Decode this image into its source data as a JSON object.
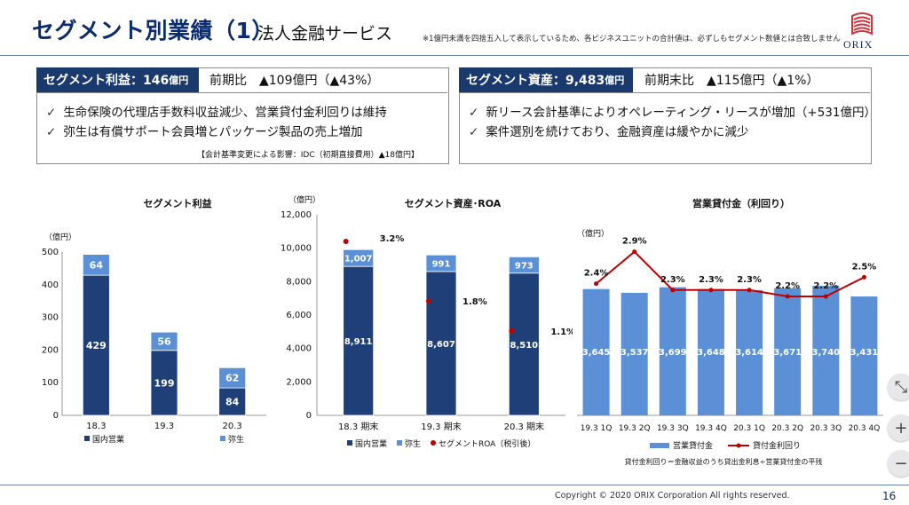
{
  "header": {
    "title": "セグメント別業績（1）",
    "subtitle": "法人金融サービス",
    "note": "※1億円未満を四捨五入して表示しているため、各ビジネスユニットの合計値は、必ずしもセグメント数値とは合致しません",
    "logo_text": "ORIX"
  },
  "profit_panel": {
    "badge_label": "セグメント利益：146",
    "badge_unit": "億円",
    "comparison": "前期比　▲109億円（▲43%）",
    "bullets": [
      "生命保険の代理店手数料収益減少、営業貸付金利回りは維持",
      "弥生は有償サポート会員増とパッケージ製品の売上増加"
    ],
    "effect_note": "【会計基準変更による影響：IDC（初期直接費用）▲18億円】"
  },
  "assets_panel": {
    "badge_label": "セグメント資産：9,483",
    "badge_unit": "億円",
    "comparison": "前期末比　▲115億円（▲1%）",
    "bullets": [
      "新リース会計基準によりオペレーティング・リースが増加（+531億円）",
      "案件選別を続けており、金融資産は緩やかに減少"
    ]
  },
  "chart_data": [
    {
      "type": "bar",
      "title": "セグメント利益",
      "unit_label": "（億円）",
      "categories": [
        "18.3",
        "19.3",
        "20.3"
      ],
      "series": [
        {
          "name": "国内営業",
          "values": [
            429,
            199,
            84
          ],
          "color": "#1f3f78"
        },
        {
          "name": "弥生",
          "values": [
            64,
            56,
            62
          ],
          "color": "#5b8fd6"
        }
      ],
      "ylim": [
        0,
        500
      ],
      "yticks": [
        "0",
        "100",
        "200",
        "300",
        "400",
        "500"
      ],
      "legend_placement": "bottom"
    },
    {
      "type": "bar",
      "title": "セグメント資産･ROA",
      "unit_label": "（億円）",
      "categories": [
        "18.3 期末",
        "19.3 期末",
        "20.3 期末"
      ],
      "series": [
        {
          "name": "国内営業",
          "values": [
            8911,
            8607,
            8510
          ],
          "labels": [
            "8,911",
            "8,607",
            "8,510"
          ],
          "color": "#1f3f78"
        },
        {
          "name": "弥生",
          "values": [
            1007,
            991,
            973
          ],
          "labels": [
            "1,007",
            "991",
            "973"
          ],
          "color": "#5b8fd6"
        },
        {
          "name": "セグメントROA（税引後）",
          "values": [
            3.2,
            1.8,
            1.1
          ],
          "labels": [
            "3.2%",
            "1.8%",
            "1.1%"
          ],
          "color": "#c00000"
        }
      ],
      "ylim": [
        0,
        12000
      ],
      "yticks": [
        "0",
        "2,000",
        "4,000",
        "6,000",
        "8,000",
        "10,000",
        "12,000"
      ],
      "legend_placement": "bottom"
    },
    {
      "type": "bar",
      "title": "営業貸付金（利回り）",
      "unit_label": "（億円）",
      "categories": [
        "19.3 1Q",
        "19.3 2Q",
        "19.3 3Q",
        "19.3 4Q",
        "20.3 1Q",
        "20.3 2Q",
        "20.3 3Q",
        "20.3 4Q"
      ],
      "series": [
        {
          "name": "営業貸付金",
          "values": [
            3645,
            3537,
            3699,
            3648,
            3614,
            3671,
            3740,
            3431
          ],
          "labels": [
            "3,645",
            "3,537",
            "3,699",
            "3,648",
            "3,614",
            "3,671",
            "3,740",
            "3,431"
          ],
          "color": "#5b8fd6"
        },
        {
          "name": "貸付金利回り",
          "values": [
            2.4,
            2.9,
            2.3,
            2.3,
            2.3,
            2.2,
            2.2,
            2.5
          ],
          "labels": [
            "2.4%",
            "2.9%",
            "2.3%",
            "2.3%",
            "2.3%",
            "2.2%",
            "2.2%",
            "2.5%"
          ],
          "color": "#c00000"
        }
      ],
      "legend_placement": "bottom",
      "footnote": "貸付金利回り＝金融収益のうち貸出金利息÷営業貸付金の平残"
    }
  ],
  "zoom_controls": {
    "fit": "⤡",
    "plus": "+",
    "minus": "−"
  },
  "footer": {
    "copyright": "Copyright © 2020 ORIX Corporation  All rights reserved.",
    "page": "16"
  }
}
